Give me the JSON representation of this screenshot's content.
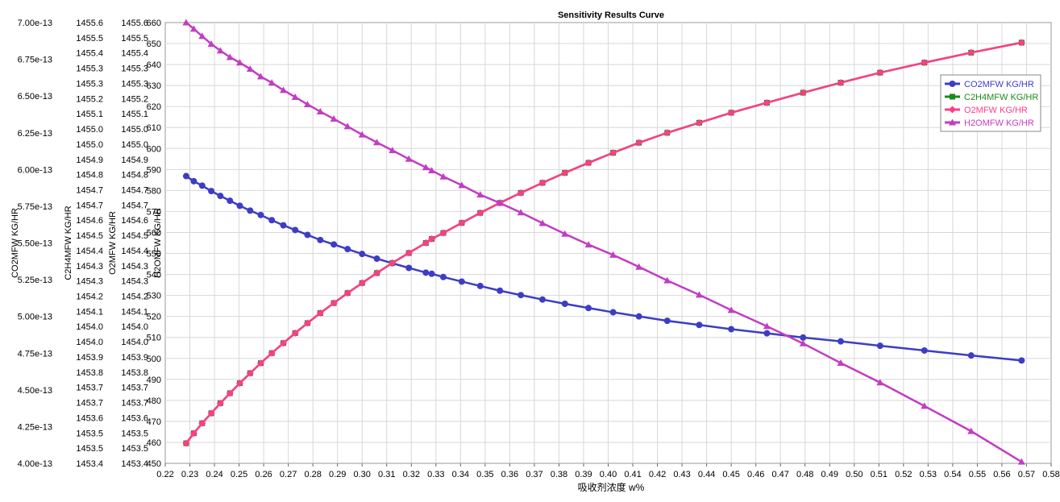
{
  "chart_data": {
    "type": "line",
    "title": "Sensitivity Results Curve",
    "xlabel": "吸收剂浓度 w%",
    "xlim": [
      0.22,
      0.58
    ],
    "x_ticks": [
      "0.22",
      "0.23",
      "0.24",
      "0.25",
      "0.26",
      "0.27",
      "0.28",
      "0.29",
      "0.30",
      "0.31",
      "0.32",
      "0.33",
      "0.34",
      "0.35",
      "0.36",
      "0.37",
      "0.38",
      "0.39",
      "0.40",
      "0.41",
      "0.42",
      "0.43",
      "0.44",
      "0.45",
      "0.46",
      "0.47",
      "0.48",
      "0.49",
      "0.50",
      "0.51",
      "0.52",
      "0.53",
      "0.54",
      "0.55",
      "0.56",
      "0.57",
      "0.58"
    ],
    "grid": true,
    "legend_position": "top-right",
    "axes": [
      {
        "id": "co2",
        "label": "CO2MFW KG/HR",
        "range": [
          4.0,
          7.0
        ],
        "ticks": [
          "4.00e-13",
          "4.25e-13",
          "4.50e-13",
          "4.75e-13",
          "5.00e-13",
          "5.25e-13",
          "5.50e-13",
          "5.75e-13",
          "6.00e-13",
          "6.25e-13",
          "6.50e-13",
          "6.75e-13",
          "7.00e-13"
        ]
      },
      {
        "id": "c2h4",
        "label": "C2H4MFW KG/HR",
        "range": [
          1453.4,
          1455.6
        ],
        "ticks": [
          "1453.4",
          "1453.5",
          "1453.5",
          "1453.6",
          "1453.7",
          "1453.7",
          "1453.8",
          "1453.9",
          "1454.0",
          "1454.0",
          "1454.1",
          "1454.2",
          "1454.3",
          "1454.3",
          "1454.4",
          "1454.5",
          "1454.6",
          "1454.7",
          "1454.7",
          "1454.8",
          "1454.9",
          "1455.0",
          "1455.0",
          "1455.1",
          "1455.2",
          "1455.3",
          "1455.3",
          "1455.4",
          "1455.5",
          "1455.6"
        ]
      },
      {
        "id": "o2",
        "label": "O2MFW KG/HR",
        "range": [
          1453.4,
          1455.6
        ],
        "ticks": [
          "1453.4",
          "1453.5",
          "1453.5",
          "1453.6",
          "1453.7",
          "1453.7",
          "1453.8",
          "1453.9",
          "1454.0",
          "1454.0",
          "1454.1",
          "1454.2",
          "1454.3",
          "1454.3",
          "1454.4",
          "1454.5",
          "1454.6",
          "1454.7",
          "1454.7",
          "1454.8",
          "1454.9",
          "1455.0",
          "1455.0",
          "1455.1",
          "1455.2",
          "1455.3",
          "1455.3",
          "1455.4",
          "1455.5",
          "1455.6"
        ]
      },
      {
        "id": "h2o",
        "label": "H2OMFW KG/HR",
        "range": [
          450,
          660
        ],
        "ticks": [
          "450",
          "460",
          "470",
          "480",
          "490",
          "500",
          "510",
          "520",
          "530",
          "540",
          "550",
          "560",
          "570",
          "580",
          "590",
          "600",
          "610",
          "620",
          "630",
          "640",
          "650",
          "660"
        ]
      }
    ],
    "x": [
      0.2285,
      0.2316,
      0.235,
      0.2387,
      0.2424,
      0.2463,
      0.2503,
      0.2545,
      0.2588,
      0.2633,
      0.268,
      0.2728,
      0.2778,
      0.283,
      0.2885,
      0.2941,
      0.3,
      0.306,
      0.3123,
      0.319,
      0.3259,
      0.3283,
      0.333,
      0.3405,
      0.348,
      0.356,
      0.3645,
      0.3733,
      0.3824,
      0.392,
      0.402,
      0.4125,
      0.424,
      0.437,
      0.45,
      0.4645,
      0.4792,
      0.4945,
      0.5105,
      0.5285,
      0.5475,
      0.568
    ],
    "series": [
      {
        "name": "CO2MFW KG/HR",
        "axis": "co2",
        "color": "#3d3dc4",
        "marker": "circle",
        "values": [
          5.955,
          5.92,
          5.89,
          5.853,
          5.82,
          5.787,
          5.753,
          5.72,
          5.69,
          5.655,
          5.62,
          5.588,
          5.555,
          5.52,
          5.49,
          5.458,
          5.425,
          5.393,
          5.362,
          5.33,
          5.298,
          5.29,
          5.268,
          5.237,
          5.207,
          5.175,
          5.145,
          5.115,
          5.086,
          5.057,
          5.028,
          5.0,
          4.97,
          4.942,
          4.913,
          4.885,
          4.856,
          4.83,
          4.8,
          4.768,
          4.734,
          4.7
        ]
      },
      {
        "name": "C2H4MFW KG/HR",
        "axis": "c2h4",
        "color": "#1a8a1a",
        "marker": "square",
        "values": [
          1453.5,
          1453.55,
          1453.6,
          1453.65,
          1453.7,
          1453.75,
          1453.8,
          1453.85,
          1453.9,
          1453.95,
          1454.0,
          1454.05,
          1454.1,
          1454.15,
          1454.2,
          1454.25,
          1454.3,
          1454.35,
          1454.4,
          1454.45,
          1454.5,
          1454.52,
          1454.55,
          1454.6,
          1454.65,
          1454.7,
          1454.75,
          1454.8,
          1454.85,
          1454.9,
          1454.95,
          1455.0,
          1455.05,
          1455.1,
          1455.15,
          1455.2,
          1455.25,
          1455.3,
          1455.35,
          1455.4,
          1455.45,
          1455.5
        ]
      },
      {
        "name": "O2MFW KG/HR",
        "axis": "o2",
        "color": "#ff3d86",
        "marker": "diamond",
        "values": [
          1453.5,
          1453.55,
          1453.6,
          1453.65,
          1453.7,
          1453.75,
          1453.8,
          1453.85,
          1453.9,
          1453.95,
          1454.0,
          1454.05,
          1454.1,
          1454.15,
          1454.2,
          1454.25,
          1454.3,
          1454.35,
          1454.4,
          1454.45,
          1454.5,
          1454.52,
          1454.55,
          1454.6,
          1454.65,
          1454.7,
          1454.75,
          1454.8,
          1454.85,
          1454.9,
          1454.95,
          1455.0,
          1455.05,
          1455.1,
          1455.15,
          1455.2,
          1455.25,
          1455.3,
          1455.35,
          1455.4,
          1455.45,
          1455.5
        ]
      },
      {
        "name": "H2OMFW KG/HR",
        "axis": "h2o",
        "color": "#c23dc4",
        "marker": "triangle",
        "values": [
          660.0,
          657.0,
          653.5,
          649.8,
          646.6,
          643.5,
          640.9,
          637.9,
          634.3,
          631.3,
          627.8,
          624.5,
          621.0,
          617.6,
          614.1,
          610.5,
          606.6,
          602.9,
          599.1,
          595.0,
          591.0,
          589.5,
          586.6,
          582.5,
          578.0,
          574.0,
          569.5,
          564.4,
          559.3,
          554.2,
          549.3,
          543.6,
          537.1,
          530.3,
          523.0,
          515.3,
          507.1,
          497.8,
          488.5,
          477.3,
          465.3,
          450.7
        ]
      }
    ]
  }
}
